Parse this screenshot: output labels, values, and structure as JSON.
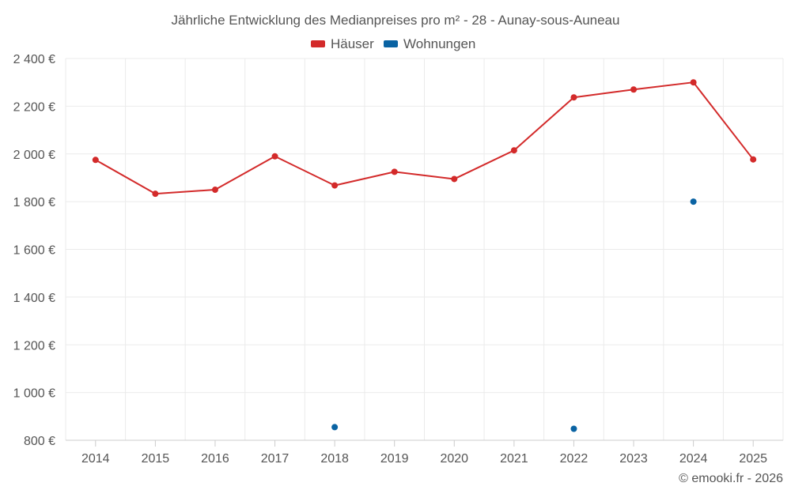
{
  "chart_data": {
    "type": "line",
    "title": "Jährliche Entwicklung des Medianpreises pro m² - 28 - Aunay-sous-Auneau",
    "categories": [
      "2014",
      "2015",
      "2016",
      "2017",
      "2018",
      "2019",
      "2020",
      "2021",
      "2022",
      "2023",
      "2024",
      "2025"
    ],
    "y_ticks": [
      "800 €",
      "1 000 €",
      "1 200 €",
      "1 400 €",
      "1 600 €",
      "1 800 €",
      "2 000 €",
      "2 200 €",
      "2 400 €"
    ],
    "ylim": [
      800,
      2400
    ],
    "series": [
      {
        "name": "Häuser",
        "color": "#d32a2a",
        "style": "line",
        "values": [
          1975,
          1833,
          1850,
          1990,
          1868,
          1925,
          1895,
          2015,
          2237,
          2270,
          2300,
          1977
        ]
      },
      {
        "name": "Wohnungen",
        "color": "#0a63a3",
        "style": "points",
        "values": [
          null,
          null,
          null,
          null,
          855,
          null,
          null,
          null,
          848,
          null,
          1800,
          null
        ]
      }
    ],
    "legend_position": "top-center",
    "grid": true
  },
  "credit": "© emooki.fr - 2026"
}
